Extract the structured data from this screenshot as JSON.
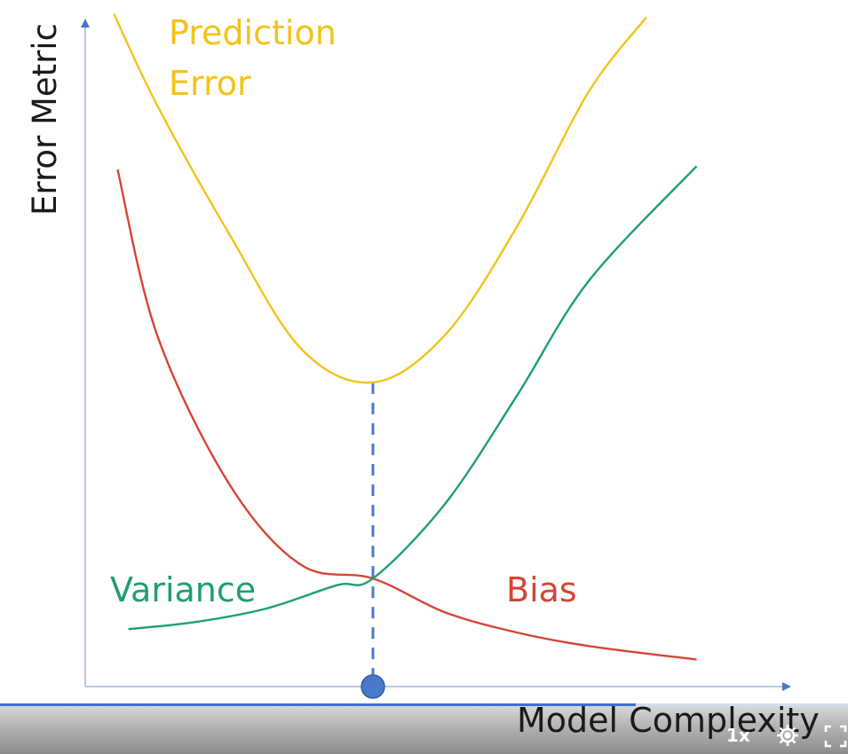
{
  "chart_data": {
    "type": "line",
    "title": "",
    "xlabel": "Model Complexity",
    "ylabel": "Error Metric",
    "x_ticks": [],
    "y_ticks": [],
    "grid": false,
    "legend": "none",
    "xlim": [
      0,
      10
    ],
    "ylim": [
      0,
      10
    ],
    "optimum_x": 4.0,
    "series": [
      {
        "name": "Prediction Error",
        "color": "#f2c318",
        "x": [
          0.4,
          1.0,
          2.0,
          3.0,
          4.0,
          5.0,
          6.0,
          7.0,
          7.8
        ],
        "y": [
          9.95,
          8.6,
          6.7,
          5.0,
          4.5,
          5.2,
          6.8,
          8.8,
          9.9
        ]
      },
      {
        "name": "Bias",
        "color": "#d64535",
        "x": [
          0.45,
          1.0,
          2.0,
          3.0,
          4.0,
          5.0,
          6.0,
          7.0,
          8.5
        ],
        "y": [
          7.65,
          5.2,
          3.0,
          1.8,
          1.6,
          1.1,
          0.8,
          0.6,
          0.4
        ]
      },
      {
        "name": "Variance",
        "color": "#1f9e72",
        "x": [
          0.6,
          1.5,
          2.5,
          3.5,
          4.0,
          5.0,
          6.0,
          7.0,
          8.5
        ],
        "y": [
          0.85,
          0.95,
          1.15,
          1.5,
          1.6,
          2.7,
          4.3,
          6.0,
          7.7
        ]
      }
    ]
  },
  "player": {
    "progress_percent": 75,
    "speed_label": "1x",
    "accent": "#3f6fd6"
  },
  "icons": {
    "settings": "gear-icon",
    "fullscreen": "fullscreen-icon"
  }
}
